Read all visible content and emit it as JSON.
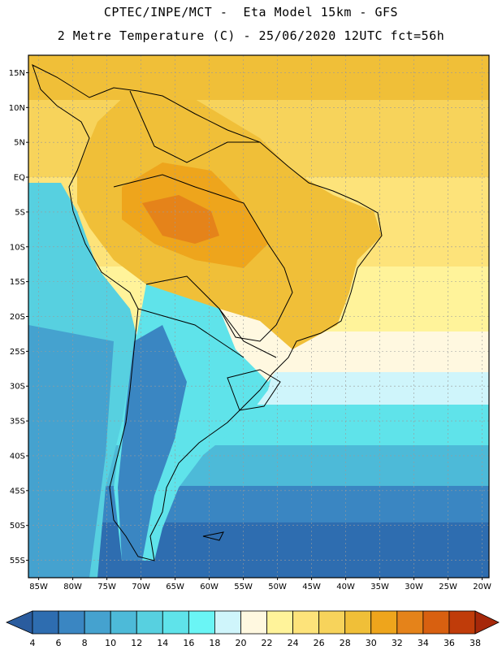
{
  "header": {
    "line1": "CPTEC/INPE/MCT -  Eta Model 15km - GFS",
    "line2": "2 Metre Temperature (C) - 25/06/2020 12UTC fct=56h"
  },
  "map": {
    "lat_labels": [
      "15N",
      "10N",
      "5N",
      "EQ",
      "5S",
      "10S",
      "15S",
      "20S",
      "25S",
      "30S",
      "35S",
      "40S",
      "45S",
      "50S",
      "55S"
    ],
    "lon_labels": [
      "85W",
      "80W",
      "75W",
      "70W",
      "65W",
      "60W",
      "55W",
      "50W",
      "45W",
      "40W",
      "35W",
      "30W",
      "25W",
      "20W"
    ]
  },
  "colorbar": {
    "labels": [
      "4",
      "6",
      "8",
      "10",
      "12",
      "14",
      "16",
      "18",
      "20",
      "22",
      "24",
      "26",
      "28",
      "30",
      "32",
      "34",
      "36",
      "38"
    ],
    "colors": [
      "#2a5c9e",
      "#2e6db0",
      "#3a86c2",
      "#45a2cf",
      "#4dbad8",
      "#57d0e0",
      "#5fe3ea",
      "#6af5f5",
      "#cff5fb",
      "#fff8e0",
      "#fff39a",
      "#fde37a",
      "#f7d35b",
      "#f0bf38",
      "#eea51c",
      "#e5831a",
      "#d86010",
      "#c03c0a",
      "#a6280a"
    ]
  }
}
